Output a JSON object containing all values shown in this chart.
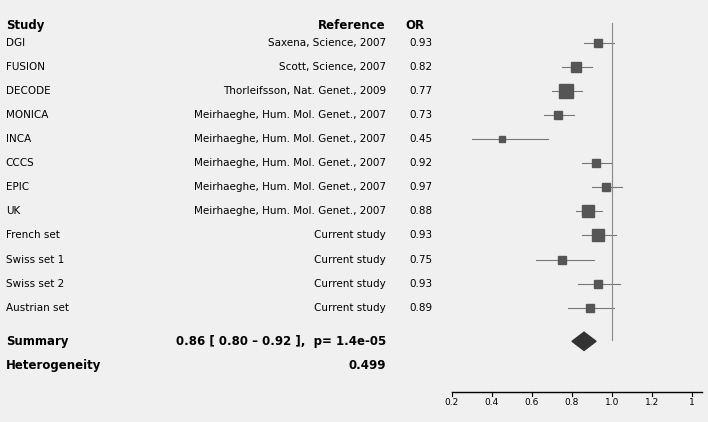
{
  "studies": [
    "DGI",
    "FUSION",
    "DECODE",
    "MONICA",
    "INCA",
    "CCCS",
    "EPIC",
    "UK",
    "French set",
    "Swiss set 1",
    "Swiss set 2",
    "Austrian set"
  ],
  "references": [
    "Saxena, Science, 2007",
    "Scott, Science, 2007",
    "Thorleifsson, Nat. Genet., 2009",
    "Meirhaeghe, Hum. Mol. Genet., 2007",
    "Meirhaeghe, Hum. Mol. Genet., 2007",
    "Meirhaeghe, Hum. Mol. Genet., 2007",
    "Meirhaeghe, Hum. Mol. Genet., 2007",
    "Meirhaeghe, Hum. Mol. Genet., 2007",
    "Current study",
    "Current study",
    "Current study",
    "Current study"
  ],
  "OR": [
    0.93,
    0.82,
    0.77,
    0.73,
    0.45,
    0.92,
    0.97,
    0.88,
    0.93,
    0.75,
    0.93,
    0.89
  ],
  "CI_low": [
    0.86,
    0.75,
    0.7,
    0.66,
    0.3,
    0.85,
    0.9,
    0.82,
    0.85,
    0.62,
    0.83,
    0.78
  ],
  "CI_high": [
    1.01,
    0.9,
    0.85,
    0.81,
    0.68,
    1.0,
    1.05,
    0.95,
    1.02,
    0.91,
    1.04,
    1.01
  ],
  "box_sizes": [
    3,
    5,
    8,
    3,
    2,
    3,
    3,
    7,
    7,
    3,
    3,
    3
  ],
  "summary_OR": 0.86,
  "summary_CI_low": 0.8,
  "summary_CI_high": 0.92,
  "xmin": 0.2,
  "xmax": 1.45,
  "header_study": "Study",
  "header_ref": "Reference",
  "header_or": "OR",
  "bg_color": "#f0f0f0",
  "text_color": "#000000",
  "marker_color": "#555555",
  "line_color": "#777777",
  "summary_color": "#333333",
  "font_size": 7.5,
  "header_font_size": 8.5,
  "summary_text": "0.86 [ 0.80 – 0.92 ],  p= 1.4e-05",
  "heterogeneity_text": "0.499"
}
